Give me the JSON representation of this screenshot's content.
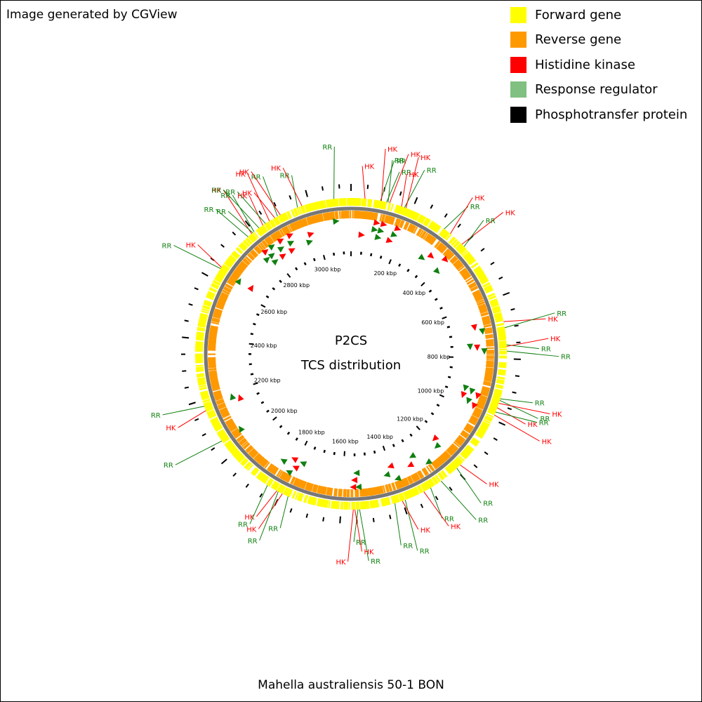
{
  "credit": "Image generated by CGView",
  "legend": [
    {
      "label": "Forward gene",
      "color": "#ffff00"
    },
    {
      "label": "Reverse gene",
      "color": "#ff9900"
    },
    {
      "label": "Histidine kinase",
      "color": "#ff0000"
    },
    {
      "label": "Response regulator",
      "color": "#80c080"
    },
    {
      "label": "Phosphotransfer protein",
      "color": "#000000"
    }
  ],
  "center": {
    "line1": "P2CS",
    "line2": "TCS distribution"
  },
  "organism": "Mahella australiensis 50-1 BON",
  "genome_kbp": 3135,
  "axis_labels": [
    "200 kbp",
    "400 kbp",
    "600 kbp",
    "800 kbp",
    "1000 kbp",
    "1200 kbp",
    "1400 kbp",
    "1600 kbp",
    "1800 kbp",
    "2000 kbp",
    "2200 kbp",
    "2400 kbp",
    "2600 kbp",
    "2800 kbp",
    "3000 kbp"
  ],
  "axis_positions_kbp": [
    200,
    400,
    600,
    800,
    1000,
    1200,
    1400,
    1600,
    1800,
    2000,
    2200,
    2400,
    2600,
    2800,
    3000
  ],
  "features": [
    {
      "kbp": 45,
      "type": "HK"
    },
    {
      "kbp": 95,
      "type": "RR"
    },
    {
      "kbp": 98,
      "type": "HK"
    },
    {
      "kbp": 115,
      "type": "RR"
    },
    {
      "kbp": 120,
      "type": "RR"
    },
    {
      "kbp": 125,
      "type": "HK"
    },
    {
      "kbp": 165,
      "type": "HK"
    },
    {
      "kbp": 175,
      "type": "RR"
    },
    {
      "kbp": 180,
      "type": "HK"
    },
    {
      "kbp": 320,
      "type": "RR"
    },
    {
      "kbp": 345,
      "type": "HK"
    },
    {
      "kbp": 395,
      "type": "HK"
    },
    {
      "kbp": 405,
      "type": "RR"
    },
    {
      "kbp": 680,
      "type": "HK"
    },
    {
      "kbp": 700,
      "type": "RR"
    },
    {
      "kbp": 755,
      "type": "RR"
    },
    {
      "kbp": 760,
      "type": "HK"
    },
    {
      "kbp": 775,
      "type": "RR"
    },
    {
      "kbp": 930,
      "type": "RR"
    },
    {
      "kbp": 935,
      "type": "RR"
    },
    {
      "kbp": 945,
      "type": "HK"
    },
    {
      "kbp": 960,
      "type": "HK"
    },
    {
      "kbp": 975,
      "type": "RR"
    },
    {
      "kbp": 985,
      "type": "HK"
    },
    {
      "kbp": 1180,
      "type": "HK"
    },
    {
      "kbp": 1195,
      "type": "RR"
    },
    {
      "kbp": 1260,
      "type": "RR"
    },
    {
      "kbp": 1300,
      "type": "RR"
    },
    {
      "kbp": 1325,
      "type": "HK"
    },
    {
      "kbp": 1390,
      "type": "RR"
    },
    {
      "kbp": 1400,
      "type": "HK"
    },
    {
      "kbp": 1425,
      "type": "RR"
    },
    {
      "kbp": 1540,
      "type": "RR"
    },
    {
      "kbp": 1545,
      "type": "RR"
    },
    {
      "kbp": 1555,
      "type": "HK"
    },
    {
      "kbp": 1560,
      "type": "HK"
    },
    {
      "kbp": 1775,
      "type": "RR"
    },
    {
      "kbp": 1795,
      "type": "HK"
    },
    {
      "kbp": 1810,
      "type": "RR"
    },
    {
      "kbp": 1815,
      "type": "HK"
    },
    {
      "kbp": 1850,
      "type": "RR"
    },
    {
      "kbp": 2055,
      "type": "RR"
    },
    {
      "kbp": 2165,
      "type": "HK"
    },
    {
      "kbp": 2180,
      "type": "RR"
    },
    {
      "kbp": 2640,
      "type": "RR"
    },
    {
      "kbp": 2645,
      "type": "HK"
    },
    {
      "kbp": 2775,
      "type": "RR"
    },
    {
      "kbp": 2790,
      "type": "HK"
    },
    {
      "kbp": 2795,
      "type": "RR"
    },
    {
      "kbp": 2800,
      "type": "RR"
    },
    {
      "kbp": 2820,
      "type": "RR"
    },
    {
      "kbp": 2835,
      "type": "HK"
    },
    {
      "kbp": 2845,
      "type": "RR"
    },
    {
      "kbp": 2860,
      "type": "HK"
    },
    {
      "kbp": 2880,
      "type": "HK"
    },
    {
      "kbp": 2890,
      "type": "RR"
    },
    {
      "kbp": 2900,
      "type": "HK"
    },
    {
      "kbp": 2960,
      "type": "RR"
    },
    {
      "kbp": 2975,
      "type": "HK"
    },
    {
      "kbp": 3080,
      "type": "RR"
    }
  ]
}
